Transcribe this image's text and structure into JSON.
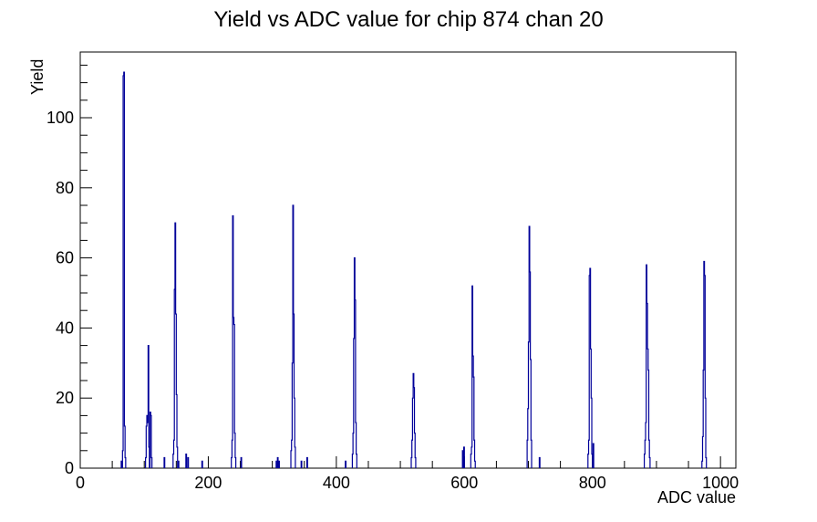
{
  "page": {
    "background": "#ffffff"
  },
  "chart_data": {
    "type": "bar",
    "title": "Yield vs ADC value for chip 874 chan 20",
    "xlabel": "ADC value",
    "ylabel": "Yield",
    "xlim": [
      0,
      1024
    ],
    "ylim": [
      0,
      118.75
    ],
    "x_major_ticks": [
      0,
      200,
      400,
      600,
      800,
      1000
    ],
    "x_minor_step": 50,
    "y_major_ticks": [
      0,
      20,
      40,
      60,
      80,
      100
    ],
    "y_minor_step": 5,
    "grid": false,
    "legend": "none",
    "line_color": "#000099",
    "axis_color": "#000000",
    "bin_width_adc": 1,
    "bins": [
      [
        64,
        2
      ],
      [
        66,
        5
      ],
      [
        67,
        112
      ],
      [
        68,
        113
      ],
      [
        69,
        12
      ],
      [
        70,
        3
      ],
      [
        102,
        3
      ],
      [
        103,
        12
      ],
      [
        104,
        15
      ],
      [
        105,
        13
      ],
      [
        106,
        35
      ],
      [
        107,
        6
      ],
      [
        109,
        16
      ],
      [
        110,
        15
      ],
      [
        111,
        3
      ],
      [
        131,
        3
      ],
      [
        145,
        4
      ],
      [
        146,
        8
      ],
      [
        147,
        51
      ],
      [
        148,
        70
      ],
      [
        149,
        44
      ],
      [
        150,
        21
      ],
      [
        151,
        6
      ],
      [
        153,
        2
      ],
      [
        165,
        4
      ],
      [
        168,
        3
      ],
      [
        190,
        2
      ],
      [
        236,
        3
      ],
      [
        237,
        8
      ],
      [
        238,
        72
      ],
      [
        239,
        43
      ],
      [
        240,
        41
      ],
      [
        241,
        10
      ],
      [
        242,
        3
      ],
      [
        251,
        3
      ],
      [
        306,
        2
      ],
      [
        308,
        3
      ],
      [
        310,
        2
      ],
      [
        329,
        5
      ],
      [
        330,
        8
      ],
      [
        331,
        30
      ],
      [
        332,
        75
      ],
      [
        333,
        44
      ],
      [
        334,
        20
      ],
      [
        335,
        6
      ],
      [
        345,
        2
      ],
      [
        354,
        3
      ],
      [
        414,
        2
      ],
      [
        425,
        4
      ],
      [
        426,
        10
      ],
      [
        427,
        37
      ],
      [
        428,
        60
      ],
      [
        429,
        48
      ],
      [
        430,
        13
      ],
      [
        431,
        4
      ],
      [
        517,
        3
      ],
      [
        518,
        8
      ],
      [
        519,
        20
      ],
      [
        520,
        27
      ],
      [
        521,
        23
      ],
      [
        522,
        10
      ],
      [
        523,
        3
      ],
      [
        597,
        5
      ],
      [
        599,
        6
      ],
      [
        610,
        4
      ],
      [
        611,
        6
      ],
      [
        612,
        52
      ],
      [
        613,
        32
      ],
      [
        614,
        26
      ],
      [
        615,
        8
      ],
      [
        616,
        2
      ],
      [
        698,
        8
      ],
      [
        699,
        17
      ],
      [
        700,
        36
      ],
      [
        701,
        69
      ],
      [
        702,
        56
      ],
      [
        703,
        31
      ],
      [
        704,
        8
      ],
      [
        717,
        3
      ],
      [
        793,
        4
      ],
      [
        794,
        8
      ],
      [
        795,
        55
      ],
      [
        796,
        57
      ],
      [
        797,
        34
      ],
      [
        798,
        20
      ],
      [
        799,
        4
      ],
      [
        801,
        7
      ],
      [
        881,
        4
      ],
      [
        882,
        8
      ],
      [
        883,
        13
      ],
      [
        884,
        58
      ],
      [
        885,
        47
      ],
      [
        886,
        34
      ],
      [
        887,
        28
      ],
      [
        888,
        8
      ],
      [
        889,
        3
      ],
      [
        971,
        2
      ],
      [
        972,
        9
      ],
      [
        973,
        28
      ],
      [
        974,
        59
      ],
      [
        975,
        55
      ],
      [
        976,
        20
      ],
      [
        977,
        3
      ]
    ]
  }
}
